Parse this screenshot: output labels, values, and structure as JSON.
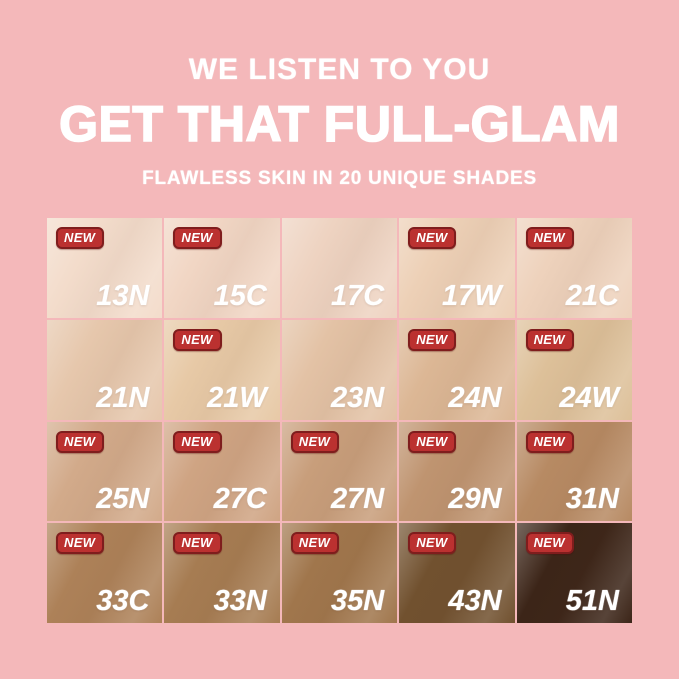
{
  "page": {
    "background_color": "#f4b8ba"
  },
  "header": {
    "line1": "WE LISTEN TO YOU",
    "line2": "GET THAT FULL-GLAM",
    "line3": "FLAWLESS SKIN IN 20 UNIQUE SHADES",
    "text_color": "#ffffff"
  },
  "new_badge": {
    "label": "NEW",
    "fill_color": "#bb3130",
    "border_color": "#7f1d1d",
    "text_color": "#ffffff"
  },
  "shade_grid": {
    "columns": 5,
    "rows": 4,
    "shades": [
      {
        "code": "13N",
        "color": "#f3dccb",
        "new": true
      },
      {
        "code": "15C",
        "color": "#f1d6c4",
        "new": true
      },
      {
        "code": "17C",
        "color": "#eed3c1",
        "new": false
      },
      {
        "code": "17W",
        "color": "#edd0b6",
        "new": true
      },
      {
        "code": "21C",
        "color": "#eed2bc",
        "new": true
      },
      {
        "code": "21N",
        "color": "#e6c7ac",
        "new": false
      },
      {
        "code": "21W",
        "color": "#e7c9a6",
        "new": true
      },
      {
        "code": "23N",
        "color": "#e3c2a5",
        "new": false
      },
      {
        "code": "24N",
        "color": "#dcb795",
        "new": true
      },
      {
        "code": "24W",
        "color": "#ddc099",
        "new": true
      },
      {
        "code": "25N",
        "color": "#d2aa8a",
        "new": true
      },
      {
        "code": "27C",
        "color": "#cfa483",
        "new": true
      },
      {
        "code": "27N",
        "color": "#c89e7b",
        "new": true
      },
      {
        "code": "29N",
        "color": "#bf9470",
        "new": true
      },
      {
        "code": "31N",
        "color": "#b78a63",
        "new": true
      },
      {
        "code": "33C",
        "color": "#ad8158",
        "new": true
      },
      {
        "code": "33N",
        "color": "#a67c52",
        "new": true
      },
      {
        "code": "35N",
        "color": "#a0764c",
        "new": true
      },
      {
        "code": "43N",
        "color": "#71512f",
        "new": true
      },
      {
        "code": "51N",
        "color": "#3c2518",
        "new": true
      }
    ]
  }
}
